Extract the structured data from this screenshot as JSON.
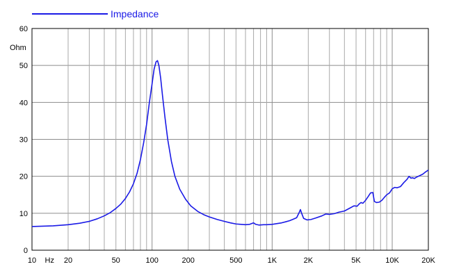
{
  "chart_data": {
    "type": "line",
    "x_scale": "log",
    "xlim": [
      10,
      20000
    ],
    "ylim": [
      0,
      60
    ],
    "ylabel": "Ohm",
    "xunit": "Hz",
    "y_ticks": [
      "0",
      "10",
      "20",
      "30",
      "40",
      "50",
      "60"
    ],
    "x_tick_labels": [
      {
        "x": 10,
        "label": "10"
      },
      {
        "x": 20,
        "label": "20"
      },
      {
        "x": 50,
        "label": "50"
      },
      {
        "x": 100,
        "label": "100"
      },
      {
        "x": 200,
        "label": "200"
      },
      {
        "x": 500,
        "label": "500"
      },
      {
        "x": 1000,
        "label": "1K"
      },
      {
        "x": 2000,
        "label": "2K"
      },
      {
        "x": 5000,
        "label": "5K"
      },
      {
        "x": 10000,
        "label": "10K"
      },
      {
        "x": 20000,
        "label": "20K"
      }
    ],
    "grid": true,
    "legend_position": "top-left",
    "colors": {
      "series": "#1a1ae6"
    },
    "series": [
      {
        "name": "Impedance",
        "points": [
          [
            10,
            6.4
          ],
          [
            15,
            6.6
          ],
          [
            20,
            6.9
          ],
          [
            25,
            7.3
          ],
          [
            30,
            7.8
          ],
          [
            35,
            8.5
          ],
          [
            40,
            9.3
          ],
          [
            45,
            10.2
          ],
          [
            50,
            11.3
          ],
          [
            55,
            12.5
          ],
          [
            60,
            14.0
          ],
          [
            65,
            15.8
          ],
          [
            70,
            18.0
          ],
          [
            75,
            20.8
          ],
          [
            80,
            24.5
          ],
          [
            85,
            29.0
          ],
          [
            90,
            34.0
          ],
          [
            95,
            40.0
          ],
          [
            100,
            45.0
          ],
          [
            104,
            49.0
          ],
          [
            108,
            51.0
          ],
          [
            111,
            51.3
          ],
          [
            114,
            50.0
          ],
          [
            118,
            46.5
          ],
          [
            122,
            42.0
          ],
          [
            128,
            36.0
          ],
          [
            135,
            30.0
          ],
          [
            145,
            24.0
          ],
          [
            155,
            20.0
          ],
          [
            170,
            16.5
          ],
          [
            190,
            13.8
          ],
          [
            210,
            12.0
          ],
          [
            240,
            10.5
          ],
          [
            270,
            9.6
          ],
          [
            300,
            9.0
          ],
          [
            350,
            8.3
          ],
          [
            400,
            7.8
          ],
          [
            450,
            7.4
          ],
          [
            500,
            7.1
          ],
          [
            550,
            7.0
          ],
          [
            600,
            6.9
          ],
          [
            650,
            7.0
          ],
          [
            700,
            7.4
          ],
          [
            730,
            7.0
          ],
          [
            780,
            6.8
          ],
          [
            850,
            6.9
          ],
          [
            900,
            6.9
          ],
          [
            1000,
            7.0
          ],
          [
            1100,
            7.2
          ],
          [
            1200,
            7.4
          ],
          [
            1300,
            7.7
          ],
          [
            1400,
            8.0
          ],
          [
            1500,
            8.4
          ],
          [
            1600,
            8.8
          ],
          [
            1680,
            10.2
          ],
          [
            1720,
            11.0
          ],
          [
            1760,
            10.0
          ],
          [
            1830,
            8.6
          ],
          [
            1950,
            8.2
          ],
          [
            2100,
            8.3
          ],
          [
            2300,
            8.7
          ],
          [
            2600,
            9.3
          ],
          [
            2800,
            9.8
          ],
          [
            3000,
            9.7
          ],
          [
            3300,
            9.9
          ],
          [
            3600,
            10.3
          ],
          [
            4000,
            10.6
          ],
          [
            4500,
            11.5
          ],
          [
            4800,
            12.0
          ],
          [
            5100,
            11.9
          ],
          [
            5300,
            12.5
          ],
          [
            5500,
            12.9
          ],
          [
            5700,
            12.7
          ],
          [
            6000,
            13.5
          ],
          [
            6300,
            14.5
          ],
          [
            6600,
            15.5
          ],
          [
            6900,
            15.6
          ],
          [
            7100,
            13.2
          ],
          [
            7400,
            12.9
          ],
          [
            7800,
            13.0
          ],
          [
            8200,
            13.5
          ],
          [
            8600,
            14.3
          ],
          [
            9000,
            15.0
          ],
          [
            9500,
            15.5
          ],
          [
            10000,
            16.6
          ],
          [
            10500,
            17.0
          ],
          [
            11000,
            16.9
          ],
          [
            11700,
            17.2
          ],
          [
            12500,
            18.3
          ],
          [
            13300,
            19.2
          ],
          [
            13800,
            20.0
          ],
          [
            14300,
            19.5
          ],
          [
            14800,
            19.6
          ],
          [
            15300,
            19.4
          ],
          [
            16000,
            19.8
          ],
          [
            17000,
            20.2
          ],
          [
            18000,
            20.6
          ],
          [
            19000,
            21.2
          ],
          [
            20000,
            21.7
          ]
        ]
      }
    ]
  }
}
